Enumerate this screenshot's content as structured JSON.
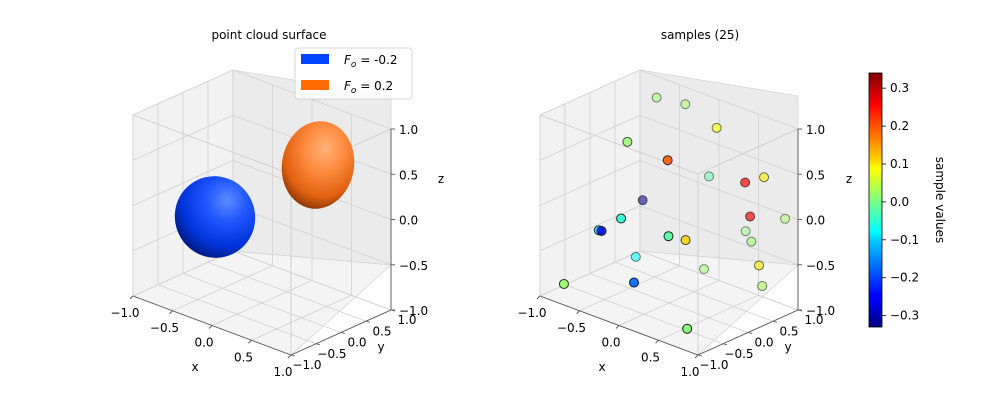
{
  "chart_data": [
    {
      "type": "scatter",
      "title": "point cloud surface",
      "xlabel": "x",
      "ylabel": "y",
      "zlabel": "z",
      "xlim": [
        -1.0,
        1.0
      ],
      "ylim": [
        -1.0,
        1.0
      ],
      "zlim": [
        -1.0,
        1.0
      ],
      "x_ticks": [
        "−1.0",
        "−0.5",
        "0.0",
        "0.5",
        "1.0"
      ],
      "y_ticks": [
        "−1.0",
        "−0.5",
        "0.0",
        "0.5",
        "1.0"
      ],
      "z_ticks": [
        "−1.0",
        "−0.5",
        "0.0",
        "0.5",
        "1.0"
      ],
      "legend": {
        "position": "top-right",
        "entries": [
          {
            "label": "F_o = -0.2",
            "label_main": "F",
            "label_sub": "o",
            "label_rest": " = -0.2",
            "color": "#0044ff"
          },
          {
            "label": "F_o = 0.2",
            "label_main": "F",
            "label_sub": "o",
            "label_rest": " = 0.2",
            "color": "#ff6a00"
          }
        ]
      },
      "surfaces": [
        {
          "name": "F_o = -0.2",
          "shape": "ellipsoid",
          "center": [
            -0.45,
            0.1,
            -0.2
          ],
          "color": "#0044ff"
        },
        {
          "name": "F_o = 0.2",
          "shape": "ellipsoid",
          "center": [
            0.6,
            0.1,
            0.45
          ],
          "color": "#ff6a00"
        }
      ],
      "grid": true
    },
    {
      "type": "scatter",
      "title": "samples (25)",
      "xlabel": "x",
      "ylabel": "y",
      "zlabel": "z",
      "xlim": [
        -1.0,
        1.0
      ],
      "ylim": [
        -1.0,
        1.0
      ],
      "zlim": [
        -1.0,
        1.0
      ],
      "x_ticks": [
        "−1.0",
        "−0.5",
        "0.0",
        "0.5",
        "1.0"
      ],
      "y_ticks": [
        "−1.0",
        "−0.5",
        "0.0",
        "0.5",
        "1.0"
      ],
      "z_ticks": [
        "−1.0",
        "−0.5",
        "0.0",
        "0.5",
        "1.0"
      ],
      "colorscale": "jet",
      "colorbar": {
        "label": "sample values",
        "min": -0.33,
        "max": 0.34,
        "ticks": [
          "−0.3",
          "−0.2",
          "−0.1",
          "0.0",
          "0.1",
          "0.2",
          "0.3"
        ],
        "tick_values": [
          -0.3,
          -0.2,
          -0.1,
          0.0,
          0.1,
          0.2,
          0.3
        ]
      },
      "points": [
        {
          "x": -0.6,
          "y": 0.7,
          "z": 0.9,
          "value": 0.02
        },
        {
          "x": -0.3,
          "y": 0.8,
          "z": 0.9,
          "value": 0.03
        },
        {
          "x": -0.4,
          "y": -0.2,
          "z": 0.7,
          "value": 0.02
        },
        {
          "x": 0.35,
          "y": 0.4,
          "z": 0.95,
          "value": 0.09
        },
        {
          "x": 0.3,
          "y": -0.5,
          "z": 0.8,
          "value": 0.2
        },
        {
          "x": 0.9,
          "y": 0.1,
          "z": 0.6,
          "value": 0.25
        },
        {
          "x": 0.95,
          "y": 0.4,
          "z": 0.6,
          "value": 0.1
        },
        {
          "x": -0.1,
          "y": -0.8,
          "z": 0.1,
          "value": -0.05
        },
        {
          "x": 0.0,
          "y": 0.8,
          "z": 0.2,
          "value": -0.02
        },
        {
          "x": 0.4,
          "y": -0.3,
          "z": -0.1,
          "value": 0.12
        },
        {
          "x": 0.5,
          "y": -0.8,
          "z": 0.1,
          "value": -0.02
        },
        {
          "x": 0.9,
          "y": 0.2,
          "z": 0.2,
          "value": 0.27
        },
        {
          "x": -0.6,
          "y": -0.4,
          "z": -0.3,
          "value": -0.27
        },
        {
          "x": -0.7,
          "y": -0.3,
          "z": -0.35,
          "value": -0.12
        },
        {
          "x": -0.65,
          "y": 0.5,
          "z": -0.2,
          "value": -0.32
        },
        {
          "x": 0.0,
          "y": -0.7,
          "z": -0.6,
          "value": -0.18
        },
        {
          "x": 0.4,
          "y": 0.9,
          "z": -0.3,
          "value": 0.01
        },
        {
          "x": 0.6,
          "y": 0.7,
          "z": -0.3,
          "value": 0.02
        },
        {
          "x": 0.95,
          "y": 0.3,
          "z": -0.35,
          "value": 0.1
        },
        {
          "x": 0.9,
          "y": 0.9,
          "z": 0.0,
          "value": 0.03
        },
        {
          "x": -0.95,
          "y": -0.6,
          "z": -0.95,
          "value": 0.02
        },
        {
          "x": -0.8,
          "y": 0.6,
          "z": -0.9,
          "value": -0.08
        },
        {
          "x": 0.0,
          "y": 0.7,
          "z": -0.8,
          "value": 0.02
        },
        {
          "x": 0.8,
          "y": 0.6,
          "z": -0.7,
          "value": 0.03
        },
        {
          "x": 0.8,
          "y": -0.9,
          "z": -0.8,
          "value": 0.01
        }
      ],
      "grid": true
    }
  ]
}
